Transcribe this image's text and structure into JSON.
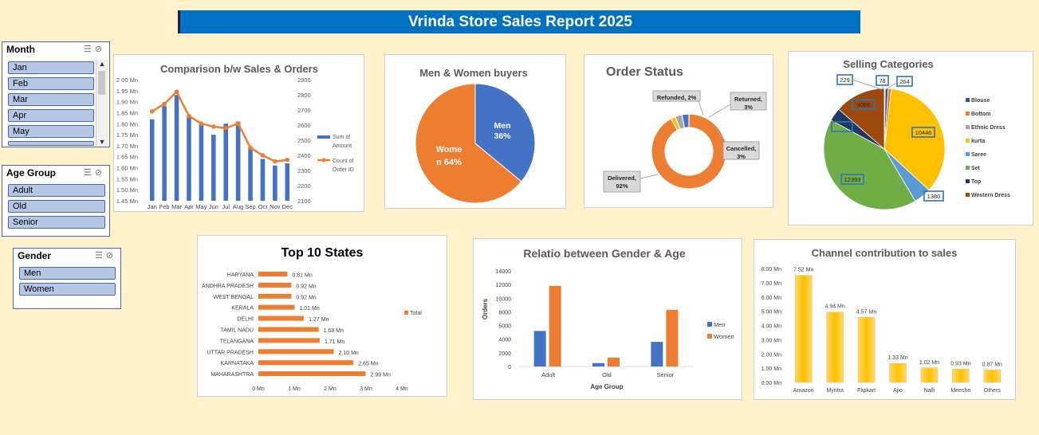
{
  "report_title": "Vrinda Store Sales Report 2025",
  "slicers": {
    "month": {
      "title": "Month",
      "items": [
        "Jan",
        "Feb",
        "Mar",
        "Apr",
        "May"
      ]
    },
    "age_group": {
      "title": "Age Group",
      "items": [
        "Adult",
        "Old",
        "Senior"
      ]
    },
    "gender": {
      "title": "Gender",
      "items": [
        "Men",
        "Women"
      ]
    }
  },
  "chart_data": [
    {
      "type": "bar",
      "title": "Comparison b/w Sales & Orders",
      "categories": [
        "Jan",
        "Feb",
        "Mar",
        "Apr",
        "May",
        "Jun",
        "Jul",
        "Aug",
        "Sep",
        "Oct",
        "Nov",
        "Dec"
      ],
      "series": [
        {
          "name": "Sum of Amount",
          "type": "bar",
          "axis": "left",
          "values": [
            1.82,
            1.88,
            1.93,
            1.83,
            1.8,
            1.75,
            1.8,
            1.81,
            1.69,
            1.64,
            1.61,
            1.62
          ],
          "color": "#4472c4"
        },
        {
          "name": "Count of Order ID",
          "type": "line",
          "axis": "right",
          "values": [
            2690,
            2740,
            2820,
            2660,
            2610,
            2590,
            2580,
            2610,
            2450,
            2400,
            2360,
            2370
          ],
          "color": "#ed7d31"
        }
      ],
      "y_left_ticks": [
        "1.45 Mn",
        "1.50 Mn",
        "1.55 Mn",
        "1.60 Mn",
        "1.65 Mn",
        "1.70 Mn",
        "1.75 Mn",
        "1.80 Mn",
        "1.85 Mn",
        "1.90 Mn",
        "1.95 Mn",
        "2.00 Mn"
      ],
      "ylim_left": [
        1.45,
        2.0
      ],
      "y_right_ticks": [
        "2100",
        "2200",
        "2300",
        "2400",
        "2500",
        "2600",
        "2700",
        "2800",
        "2900"
      ],
      "ylim_right": [
        2100,
        2900
      ],
      "legend": [
        "Sum of Amount",
        "Count of Order ID"
      ],
      "legend_position": "right"
    },
    {
      "type": "pie",
      "title": "Men & Women buyers",
      "labels": [
        "Men",
        "Women"
      ],
      "values": [
        36,
        64
      ],
      "data_labels": [
        "Men\n36%",
        "Wome\nn 64%"
      ],
      "colors": [
        "#4472c4",
        "#ed7d31"
      ]
    },
    {
      "type": "pie",
      "title": "Order Status",
      "labels": [
        "Delivered",
        "Refunded",
        "Returned",
        "Cancelled"
      ],
      "values": [
        92,
        2,
        3,
        3
      ],
      "data_labels": [
        "Delivered,\n92%",
        "Refunded, 2%",
        "Returned,\n3%",
        "Cancelled,\n3%"
      ],
      "colors": [
        "#ed7d31",
        "#ffc000",
        "#a5a5a5",
        "#4472c4"
      ]
    },
    {
      "type": "pie",
      "title": "Selling Categories",
      "labels": [
        "Blouse",
        "Bottom",
        "Ethnic Dress",
        "kurta",
        "Saree",
        "Set",
        "Top",
        "Western Dress"
      ],
      "values": [
        229,
        264,
        78,
        10446,
        1380,
        12393,
        1050,
        4066
      ],
      "data_labels": [
        "229",
        "264",
        "78",
        "10446",
        "1380",
        "12393",
        "",
        "4066"
      ],
      "colors": [
        "#2f5597",
        "#ed7d31",
        "#a5a5a5",
        "#ffc000",
        "#5b9bd5",
        "#70ad47",
        "#1f3864",
        "#9e480e"
      ],
      "legend": [
        "Blouse",
        "Bottom",
        "Ethnic Dress",
        "kurta",
        "Saree",
        "Set",
        "Top",
        "Western Dress"
      ],
      "legend_position": "right"
    },
    {
      "type": "bar",
      "orientation": "horizontal",
      "title": "Top 10 States",
      "categories": [
        "HARYANA",
        "ANDHRA PRADESH",
        "WEST BENGAL",
        "KERALA",
        "DELHI",
        "TAMIL NADU",
        "TELANGANA",
        "UTTAR PRADESH",
        "KARNATAKA",
        "MAHARASHTRA"
      ],
      "values": [
        0.81,
        0.92,
        0.92,
        1.01,
        1.27,
        1.68,
        1.71,
        2.1,
        2.65,
        2.99
      ],
      "data_labels": [
        "0.81 Mn",
        "0.92 Mn",
        "0.92 Mn",
        "1.01 Mn",
        "1.27 Mn",
        "1.68 Mn",
        "1.71 Mn",
        "2.10 Mn",
        "2.65 Mn",
        "2.99 Mn"
      ],
      "x_ticks": [
        "0 Mn",
        "1 Mn",
        "2 Mn",
        "3 Mn",
        "4 Mn"
      ],
      "xlim": [
        0,
        4
      ],
      "legend": [
        "Total"
      ],
      "color": "#ed7d31"
    },
    {
      "type": "bar",
      "title": "Relatio between Gender & Age",
      "categories": [
        "Adult",
        "Old",
        "Senior"
      ],
      "series": [
        {
          "name": "Men",
          "values": [
            5200,
            500,
            3600
          ],
          "color": "#4472c4"
        },
        {
          "name": "Women",
          "values": [
            11800,
            1300,
            8300
          ],
          "color": "#ed7d31"
        }
      ],
      "xlabel": "Age Group",
      "ylabel": "Orders",
      "y_ticks": [
        "0",
        "2000",
        "4000",
        "6000",
        "8000",
        "10000",
        "12000",
        "14000"
      ],
      "ylim": [
        0,
        14000
      ],
      "legend_position": "right"
    },
    {
      "type": "bar",
      "title": "Channel contribution to sales",
      "categories": [
        "Amazon",
        "Myntra",
        "Flipkart",
        "Ajio",
        "Nalli",
        "Meesho",
        "Others"
      ],
      "values": [
        7.52,
        4.94,
        4.57,
        1.33,
        1.02,
        0.93,
        0.87
      ],
      "data_labels": [
        "7.52 Mn",
        "4.94 Mn",
        "4.57 Mn",
        "1.33 Mn",
        "1.02 Mn",
        "0.93 Mn",
        "0.87 Mn"
      ],
      "y_ticks": [
        "0.00 Mn",
        "1.00 Mn",
        "2.00 Mn",
        "3.00 Mn",
        "4.00 Mn",
        "5.00 Mn",
        "6.00 Mn",
        "7.00 Mn",
        "8.00 Mn"
      ],
      "ylim": [
        0,
        8
      ],
      "color": "#ffc000"
    }
  ]
}
